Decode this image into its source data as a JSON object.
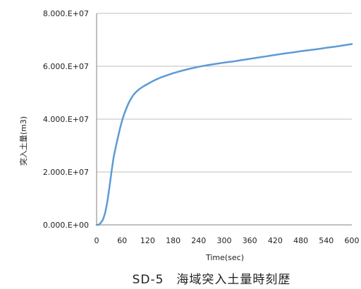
{
  "chart_data": {
    "type": "line",
    "title": "SD-5　海域突入土量時刻歴",
    "xlabel": "Time(sec)",
    "ylabel": "突入土量(m3)",
    "xlim": [
      0,
      600
    ],
    "ylim": [
      0,
      80000000
    ],
    "x_ticks": [
      "0",
      "60",
      "120",
      "180",
      "240",
      "300",
      "360",
      "420",
      "480",
      "540",
      "600"
    ],
    "y_ticks": [
      "0.000.E+00",
      "2.000.E+07",
      "4.000.E+07",
      "6.000.E+07",
      "8.000.E+07"
    ],
    "grid": "horizontal",
    "colors": {
      "series": "#5b9bd5",
      "grid": "#bfbfbf",
      "axis": "#808080"
    },
    "series": [
      {
        "x": [
          0,
          5,
          10,
          15,
          20,
          25,
          30,
          35,
          40,
          45,
          50,
          55,
          60,
          65,
          70,
          75,
          80,
          85,
          90,
          95,
          100,
          110,
          120,
          130,
          140,
          150,
          160,
          180,
          200,
          220,
          240,
          260,
          280,
          300,
          320,
          340,
          360,
          380,
          400,
          420,
          440,
          460,
          480,
          500,
          520,
          540,
          560,
          580,
          600
        ],
        "values": [
          0,
          0,
          800000,
          2000000,
          4500000,
          8500000,
          14000000,
          20000000,
          25500000,
          29500000,
          33000000,
          36500000,
          39500000,
          42000000,
          44000000,
          46000000,
          47500000,
          48800000,
          49800000,
          50600000,
          51300000,
          52400000,
          53300000,
          54200000,
          55000000,
          55700000,
          56300000,
          57400000,
          58300000,
          59100000,
          59800000,
          60400000,
          60900000,
          61400000,
          61800000,
          62300000,
          62800000,
          63300000,
          63800000,
          64300000,
          64800000,
          65200000,
          65700000,
          66100000,
          66500000,
          67000000,
          67400000,
          67900000,
          68400000
        ]
      }
    ]
  }
}
